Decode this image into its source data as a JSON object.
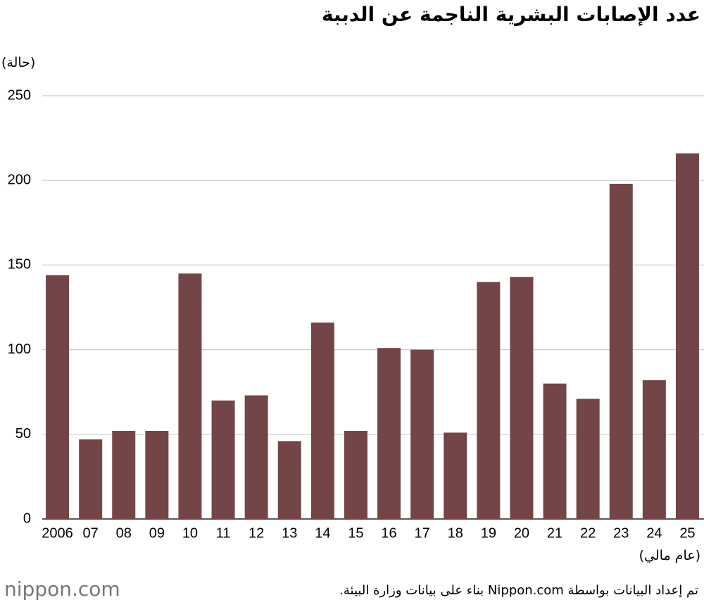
{
  "chart_data": {
    "type": "bar",
    "title": "عدد الإصابات البشرية الناجمة عن الدببة",
    "y_label": "(حالة)",
    "x_label": "(عام مالي)",
    "source": "تم إعداد البيانات بواسطة Nippon.com بناء على بيانات وزارة البيئة.",
    "logo": "nippon.com",
    "categories": [
      "2006",
      "07",
      "08",
      "09",
      "10",
      "11",
      "12",
      "13",
      "14",
      "15",
      "16",
      "17",
      "18",
      "19",
      "20",
      "21",
      "22",
      "23",
      "24",
      "25"
    ],
    "values": [
      144,
      47,
      52,
      52,
      145,
      70,
      73,
      46,
      116,
      52,
      101,
      100,
      51,
      140,
      143,
      80,
      71,
      198,
      82,
      216
    ],
    "color": "#744547",
    "ylim": [
      0,
      250
    ],
    "yticks": [
      0,
      50,
      100,
      150,
      200,
      250
    ],
    "grid": true
  }
}
